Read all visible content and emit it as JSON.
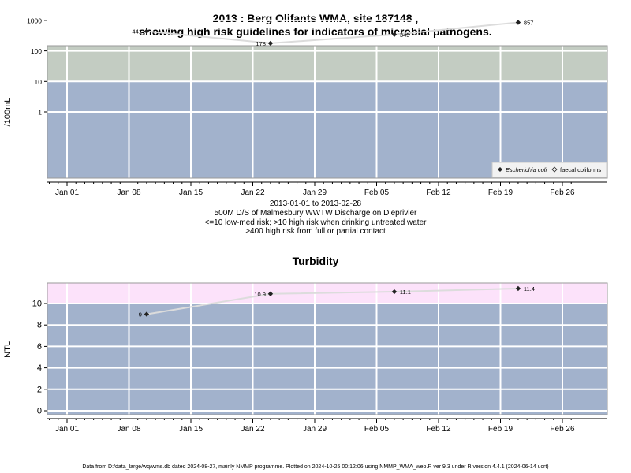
{
  "title_line1": "2013 : Berg Olifants WMA, site 187148 ,",
  "title_line2": "showing high risk guidelines for indicators of microbial pathogens.",
  "info_lines": [
    "2013-01-01 to 2013-02-28",
    "500M D/S of Malmesbury WWTW Discharge on Dieprivier",
    "<=10 low-med risk; >10 high risk when drinking untreated water",
    ">400 high risk from full or partial contact"
  ],
  "turbidity_title": "Turbidity",
  "footer": "Data from D:/data_large/wq/wms.db dated 2024-08-27, mainly NMMP programme. Plotted on 2024-10-25 00:12:06 using NMMP_WMA_web.R ver 9.3 under R version 4.4.1 (2024-06-14 ucrt)",
  "colors": {
    "band_low": "#a2b2cc",
    "band_mid": "#c3ccc2",
    "band_high": "#fff8cc",
    "turb_high": "#fce2fa",
    "grid": "#ffffff",
    "line": "#dcdcdc",
    "point": "#222222"
  },
  "chart_data": [
    {
      "type": "line",
      "ylabel": "/100mL",
      "y_scale": "log",
      "yticks": [
        1,
        10,
        100,
        1000
      ],
      "ytick_labels": [
        "1",
        "10",
        "100",
        "1000"
      ],
      "xticks": [
        "2013-01-01",
        "2013-01-08",
        "2013-01-15",
        "2013-01-22",
        "2013-01-29",
        "2013-02-05",
        "2013-02-12",
        "2013-02-19",
        "2013-02-26"
      ],
      "xtick_labels": [
        "Jan 01",
        "Jan 08",
        "Jan 15",
        "Jan 22",
        "Jan 29",
        "Feb 05",
        "Feb 12",
        "Feb 19",
        "Feb 26"
      ],
      "bands": [
        {
          "from": 10,
          "to": 400,
          "color": "band_mid"
        },
        {
          "from": 400,
          "to": 1000,
          "color": "band_high"
        }
      ],
      "series": [
        {
          "name": "Escherichia coli",
          "marker": "filled-diamond",
          "x": [
            "2013-01-10",
            "2013-01-24",
            "2013-02-07",
            "2013-02-21"
          ],
          "y": [
            441,
            178,
            345,
            857
          ],
          "labels": [
            "441",
            "178",
            "345",
            "857"
          ]
        },
        {
          "name": "faecal coliforms",
          "marker": "open-diamond",
          "x": [],
          "y": []
        }
      ],
      "legend_position": "bottom-right"
    },
    {
      "type": "line",
      "title": "Turbidity",
      "ylabel": "NTU",
      "y_scale": "linear",
      "yticks": [
        0,
        2,
        4,
        6,
        8,
        10
      ],
      "ytick_labels": [
        "0",
        "2",
        "4",
        "6",
        "8",
        "10"
      ],
      "xticks": [
        "2013-01-01",
        "2013-01-08",
        "2013-01-15",
        "2013-01-22",
        "2013-01-29",
        "2013-02-05",
        "2013-02-12",
        "2013-02-19",
        "2013-02-26"
      ],
      "xtick_labels": [
        "Jan 01",
        "Jan 08",
        "Jan 15",
        "Jan 22",
        "Jan 29",
        "Feb 05",
        "Feb 12",
        "Feb 19",
        "Feb 26"
      ],
      "bands": [
        {
          "from": 10,
          "to": 12,
          "color": "turb_high"
        }
      ],
      "series": [
        {
          "x": [
            "2013-01-10",
            "2013-01-24",
            "2013-02-07",
            "2013-02-21"
          ],
          "y": [
            9,
            10.9,
            11.1,
            11.4
          ],
          "labels": [
            "9",
            "10.9",
            "11.1",
            "11.4"
          ]
        }
      ]
    }
  ]
}
